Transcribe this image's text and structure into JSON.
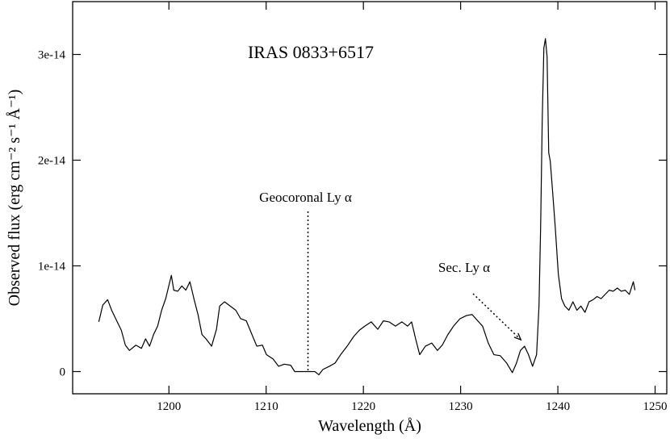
{
  "chart_data": {
    "type": "line",
    "title": "IRAS 0833+6517",
    "xlabel": "Wavelength (Å)",
    "ylabel": "Observed flux (erg cm⁻² s⁻¹ Å⁻¹)",
    "xlim": [
      1190.1,
      1251.2
    ],
    "ylim": [
      -2.1e-15,
      3.5e-14
    ],
    "xticks": [
      1200,
      1210,
      1220,
      1230,
      1240,
      1250
    ],
    "yticks": [
      0,
      {
        "value": 1e-14,
        "label": "1e-14"
      },
      {
        "value": 2e-14,
        "label": "2e-14"
      },
      {
        "value": 3e-14,
        "label": "3e-14"
      }
    ],
    "grid": false,
    "series": [
      {
        "color": "#000000",
        "x": [
          1192.79,
          1193.2,
          1193.7,
          1194.11,
          1194.53,
          1195.11,
          1195.52,
          1195.94,
          1196.6,
          1197.18,
          1197.6,
          1198.01,
          1198.42,
          1198.84,
          1199.25,
          1199.67,
          1200.25,
          1200.5,
          1200.91,
          1201.33,
          1201.74,
          1202.16,
          1202.57,
          1202.99,
          1203.4,
          1203.81,
          1204.39,
          1204.89,
          1205.22,
          1205.72,
          1206.3,
          1206.88,
          1207.38,
          1207.96,
          1208.54,
          1209.04,
          1209.62,
          1210.03,
          1210.7,
          1211.28,
          1211.86,
          1212.52,
          1212.94,
          1213.76,
          1215.01,
          1215.42,
          1215.84,
          1216.5,
          1217.08,
          1217.66,
          1218.33,
          1218.99,
          1219.57,
          1220.15,
          1220.81,
          1221.48,
          1222.06,
          1222.64,
          1223.3,
          1223.96,
          1224.54,
          1224.96,
          1225.37,
          1225.79,
          1226.37,
          1227.03,
          1227.61,
          1228.11,
          1228.69,
          1229.27,
          1229.93,
          1230.6,
          1231.18,
          1231.76,
          1232.26,
          1232.84,
          1233.42,
          1234.08,
          1234.74,
          1235.32,
          1235.74,
          1236.15,
          1236.57,
          1236.98,
          1237.4,
          1237.81,
          1238.06,
          1238.23,
          1238.39,
          1238.56,
          1238.72,
          1238.89,
          1239.06,
          1239.22,
          1239.47,
          1239.72,
          1240.05,
          1240.38,
          1240.72,
          1241.13,
          1241.55,
          1241.96,
          1242.37,
          1242.79,
          1243.2,
          1243.62,
          1244.03,
          1244.45,
          1244.86,
          1245.28,
          1245.69,
          1246.11,
          1246.52,
          1246.93,
          1247.35,
          1247.76,
          1247.93
        ],
        "values": [
          4.7e-15,
          6.3e-15,
          6.8e-15,
          5.8e-15,
          5e-15,
          3.9e-15,
          2.5e-15,
          2e-15,
          2.5e-15,
          2.2e-15,
          3.1e-15,
          2.4e-15,
          3.5e-15,
          4.3e-15,
          5.8e-15,
          6.9e-15,
          9.1e-15,
          7.7e-15,
          7.6e-15,
          8.1e-15,
          7.7e-15,
          8.5e-15,
          6.9e-15,
          5.4e-15,
          3.5e-15,
          3.1e-15,
          2.4e-15,
          4e-15,
          6.2e-15,
          6.6e-15,
          6.2e-15,
          5.8e-15,
          5e-15,
          4.8e-15,
          3.5e-15,
          2.4e-15,
          2.5e-15,
          1.6e-15,
          1.2e-15,
          5e-16,
          7e-16,
          6e-16,
          0,
          0,
          0,
          -3e-16,
          2e-16,
          5e-16,
          8e-16,
          1.6e-15,
          2.4e-15,
          3.3e-15,
          3.9e-15,
          4.3e-15,
          4.7e-15,
          4e-15,
          4.8e-15,
          4.7e-15,
          4.3e-15,
          4.7e-15,
          4.3e-15,
          4.7e-15,
          3.1e-15,
          1.6e-15,
          2.4e-15,
          2.7e-15,
          2e-15,
          2.5e-15,
          3.5e-15,
          4.3e-15,
          5e-15,
          5.3e-15,
          5.4e-15,
          4.8e-15,
          4.3e-15,
          2.7e-15,
          1.6e-15,
          1.5e-15,
          8e-16,
          -1e-16,
          8e-16,
          2e-15,
          2.4e-15,
          1.6e-15,
          5e-16,
          1.6e-15,
          6.2e-15,
          1.38e-14,
          2.37e-14,
          3.06e-14,
          3.15e-14,
          2.98e-14,
          2.07e-14,
          1.99e-14,
          1.69e-14,
          1.38e-14,
          9.2e-15,
          6.9e-15,
          6.2e-15,
          5.8e-15,
          6.6e-15,
          5.8e-15,
          6.2e-15,
          5.6e-15,
          6.6e-15,
          6.8e-15,
          7.1e-15,
          6.9e-15,
          7.3e-15,
          7.7e-15,
          7.6e-15,
          7.9e-15,
          7.6e-15,
          7.7e-15,
          7.3e-15,
          8.5e-15,
          7.7e-15
        ]
      }
    ],
    "annotations": [
      {
        "text": "Geocoronal Ly α",
        "x": 1214.3
      },
      {
        "text": "Sec. Ly α",
        "x": 1236.2,
        "y": 2.7e-15
      }
    ]
  }
}
